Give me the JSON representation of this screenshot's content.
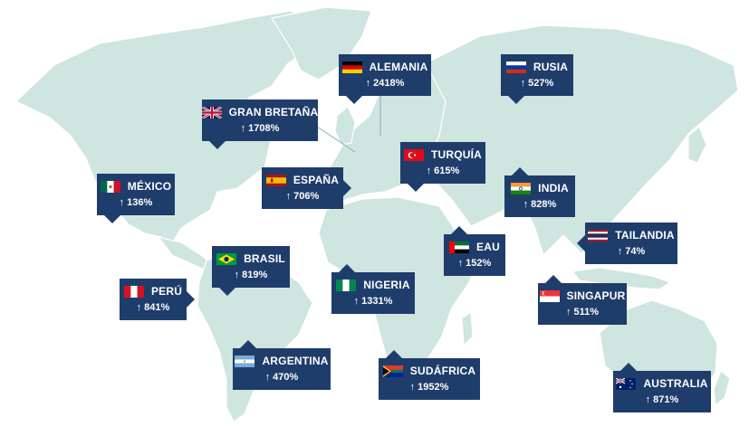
{
  "countries": [
    {
      "name": "ALEMANIA",
      "value": "2418%",
      "flag": "germany-flag"
    },
    {
      "name": "RUSIA",
      "value": "527%",
      "flag": "russia-flag"
    },
    {
      "name": "GRAN BRETAÑA",
      "value": "1708%",
      "flag": "uk-flag"
    },
    {
      "name": "TURQUÍA",
      "value": "615%",
      "flag": "turkey-flag"
    },
    {
      "name": "MÉXICO",
      "value": "136%",
      "flag": "mexico-flag"
    },
    {
      "name": "ESPAÑA",
      "value": "706%",
      "flag": "spain-flag"
    },
    {
      "name": "INDIA",
      "value": "828%",
      "flag": "india-flag"
    },
    {
      "name": "TAILANDIA",
      "value": "74%",
      "flag": "thailand-flag"
    },
    {
      "name": "EAU",
      "value": "152%",
      "flag": "uae-flag"
    },
    {
      "name": "BRASIL",
      "value": "819%",
      "flag": "brazil-flag"
    },
    {
      "name": "PERÚ",
      "value": "841%",
      "flag": "peru-flag"
    },
    {
      "name": "NIGERIA",
      "value": "1331%",
      "flag": "nigeria-flag"
    },
    {
      "name": "SINGAPUR",
      "value": "511%",
      "flag": "singapore-flag"
    },
    {
      "name": "ARGENTINA",
      "value": "470%",
      "flag": "argentina-flag"
    },
    {
      "name": "SUDÁFRICA",
      "value": "1952%",
      "flag": "south-africa-flag"
    },
    {
      "name": "AUSTRALIA",
      "value": "871%",
      "flag": "australia-flag"
    }
  ],
  "arrow_symbol": "↑",
  "colors": {
    "card": "#1f3d6b",
    "land": "#cfe5df",
    "text": "#ffffff"
  }
}
